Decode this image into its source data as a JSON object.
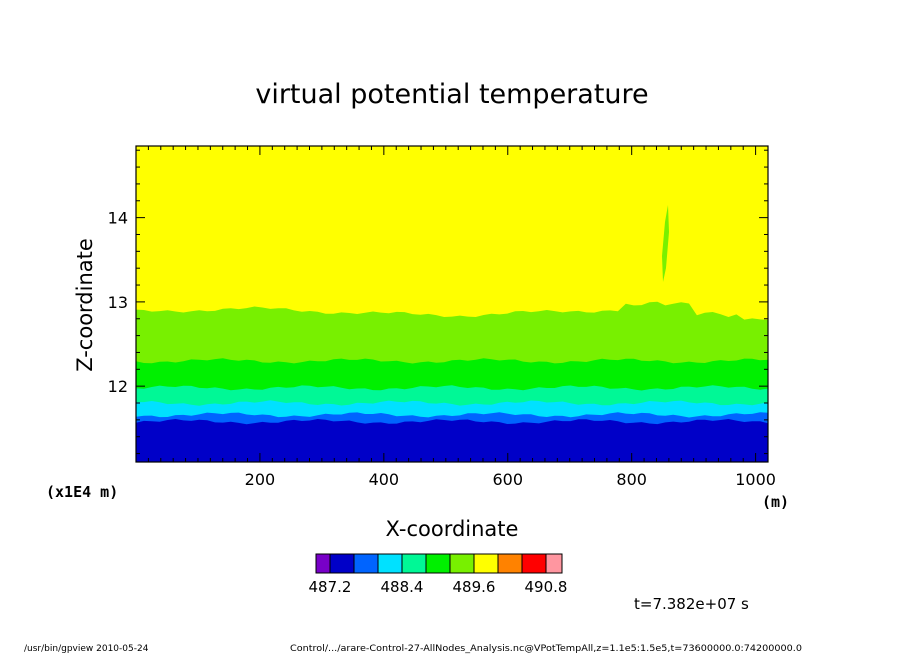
{
  "chart_data": {
    "type": "heatmap",
    "title": "virtual potential temperature",
    "xlabel": "X-coordinate",
    "ylabel": "Z-coordinate",
    "x_unit": "(m)",
    "y_unit": "(x1E4 m)",
    "xlim": [
      0,
      1020
    ],
    "ylim": [
      11.1,
      14.85
    ],
    "x_ticks": [
      "200",
      "400",
      "600",
      "800",
      "1000"
    ],
    "x_tick_values": [
      200,
      400,
      600,
      800,
      1000
    ],
    "y_ticks": [
      "12",
      "13",
      "14"
    ],
    "y_tick_values": [
      12,
      13,
      14
    ],
    "layers": [
      {
        "level": 487.4,
        "color": "#0000c8",
        "z_top": 11.58
      },
      {
        "level": 487.8,
        "color": "#0064ff",
        "z_top": 11.66
      },
      {
        "level": 488.2,
        "color": "#00e1ff",
        "z_top": 11.8
      },
      {
        "level": 488.6,
        "color": "#00f896",
        "z_top": 11.98
      },
      {
        "level": 489.0,
        "color": "#00f000",
        "z_top": 12.3
      },
      {
        "level": 489.4,
        "color": "#78f000",
        "z_top": 12.88
      },
      {
        "level": 489.8,
        "color": "#ffff00",
        "z_top": 14.85
      }
    ],
    "colorbar": {
      "colors": [
        "#7800c8",
        "#0000c8",
        "#0064ff",
        "#00e1ff",
        "#00f896",
        "#00f000",
        "#78f000",
        "#ffff00",
        "#ff8200",
        "#ff0000",
        "#ff96a0"
      ],
      "labels": [
        "487.2",
        "488.4",
        "489.6",
        "490.8"
      ]
    },
    "time_label": "t=7.382e+07 s"
  },
  "footer": {
    "left": "/usr/bin/gpview  2010-05-24",
    "right": "Control/.../arare-Control-27-AllNodes_Analysis.nc@VPotTempAll,z=1.1e5:1.5e5,t=73600000.0:74200000.0"
  }
}
